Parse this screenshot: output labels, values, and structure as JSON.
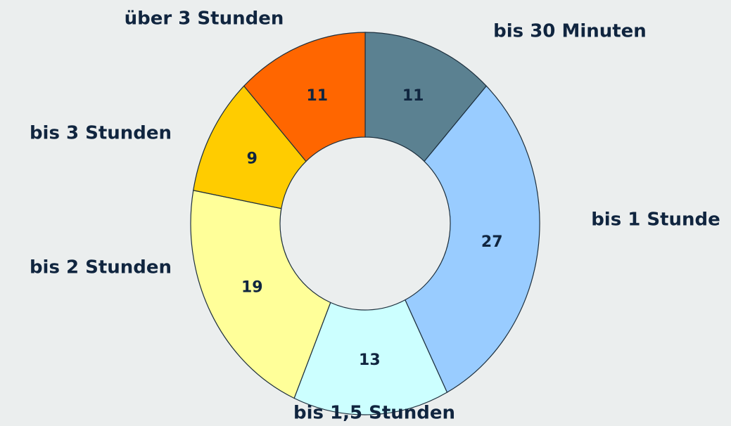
{
  "chart_data": {
    "type": "donut",
    "categories": [
      "bis 30 Minuten",
      "bis 1 Stunde",
      "bis 1,5 Stunden",
      "bis 2 Stunden",
      "bis 3 Stunden",
      "über 3 Stunden"
    ],
    "values": [
      11,
      27,
      13,
      19,
      9,
      11
    ],
    "colors": [
      "#5b8191",
      "#99ccff",
      "#ccffff",
      "#ffff99",
      "#ffcc00",
      "#ff6600"
    ]
  }
}
